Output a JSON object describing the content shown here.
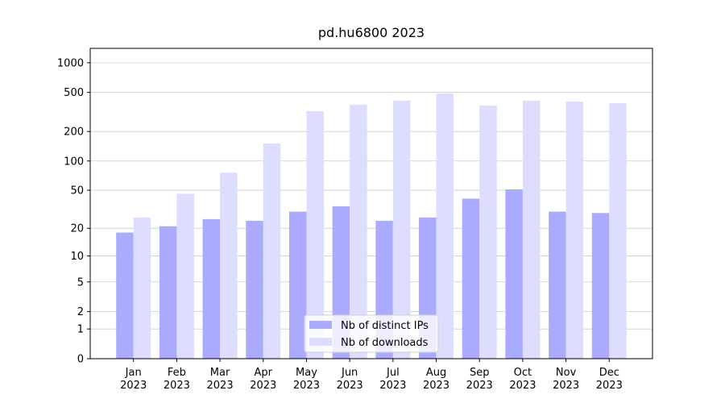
{
  "chart_data": {
    "type": "bar",
    "title": "pd.hu6800 2023",
    "categories": [
      "Jan 2023",
      "Feb 2023",
      "Mar 2023",
      "Apr 2023",
      "May 2023",
      "Jun 2023",
      "Jul 2023",
      "Aug 2023",
      "Sep 2023",
      "Oct 2023",
      "Nov 2023",
      "Dec 2023"
    ],
    "series": [
      {
        "name": "Nb of distinct IPs",
        "color": "#aaaaff",
        "values": [
          18,
          21,
          25,
          24,
          30,
          34,
          24,
          26,
          41,
          51,
          30,
          29
        ]
      },
      {
        "name": "Nb of downloads",
        "color": "#ddddff",
        "values": [
          26,
          46,
          76,
          151,
          322,
          375,
          413,
          488,
          368,
          412,
          404,
          389
        ]
      }
    ],
    "yscale": "log1p",
    "ylim": [
      0,
      1400
    ],
    "yticks": [
      0,
      1,
      2,
      5,
      10,
      20,
      50,
      100,
      200,
      500,
      1000
    ],
    "grid": true,
    "legend": "lower center"
  }
}
